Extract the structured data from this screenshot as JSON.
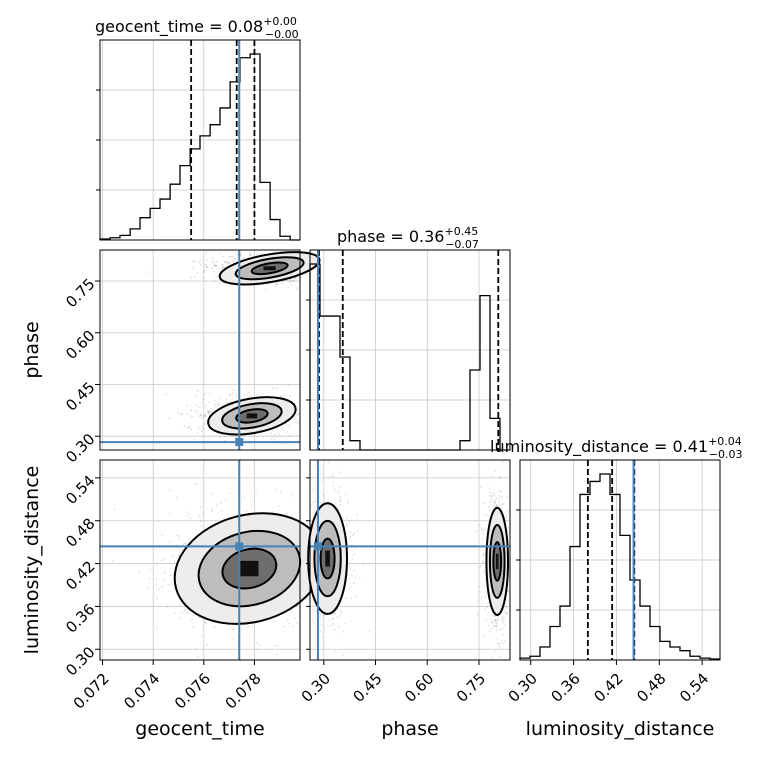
{
  "chart_data": {
    "type": "corner",
    "parameters": [
      "geocent_time",
      "phase",
      "luminosity_distance"
    ],
    "axis_labels": {
      "geocent_time": "geocent_time",
      "phase": "phase",
      "luminosity_distance": "luminosity_distance"
    },
    "ranges": {
      "geocent_time": [
        0.0719,
        0.0798
      ],
      "phase": [
        0.26,
        0.84
      ],
      "luminosity_distance": [
        0.285,
        0.565
      ]
    },
    "ticks": {
      "geocent_time": [
        0.072,
        0.074,
        0.076,
        0.078
      ],
      "phase": [
        0.3,
        0.45,
        0.6,
        0.75
      ],
      "luminosity_distance": [
        0.3,
        0.36,
        0.42,
        0.48,
        0.54
      ]
    },
    "tick_labels": {
      "geocent_time": [
        "0.072",
        "0.074",
        "0.076",
        "0.078"
      ],
      "phase": [
        "0.30",
        "0.45",
        "0.60",
        "0.75"
      ],
      "luminosity_distance": [
        "0.30",
        "0.36",
        "0.42",
        "0.48",
        "0.54"
      ]
    },
    "titles": {
      "geocent_time": {
        "text": "geocent_time = 0.08",
        "plus": "+0.00",
        "minus": "−0.00"
      },
      "phase": {
        "text": "phase = 0.36",
        "plus": "+0.45",
        "minus": "−0.07"
      },
      "luminosity_distance": {
        "text": "luminosity_distance = 0.41",
        "plus": "+0.04",
        "minus": "−0.03"
      }
    },
    "quantiles": {
      "geocent_time": [
        0.0755,
        0.0773,
        0.078
      ],
      "phase": [
        0.286,
        0.355,
        0.806
      ],
      "luminosity_distance": [
        0.38,
        0.414,
        0.445
      ]
    },
    "truths": {
      "geocent_time": 0.0774,
      "phase": 0.283,
      "luminosity_distance": 0.444
    },
    "histograms": {
      "geocent_time": {
        "edges": [
          0.0719,
          0.0723,
          0.07269,
          0.07309,
          0.07348,
          0.07388,
          0.07427,
          0.07467,
          0.07506,
          0.07546,
          0.07585,
          0.07625,
          0.07664,
          0.07704,
          0.07743,
          0.07783,
          0.07822,
          0.07862,
          0.07901,
          0.07941,
          0.0798
        ],
        "values": [
          0.005,
          0.012,
          0.025,
          0.06,
          0.12,
          0.17,
          0.22,
          0.3,
          0.4,
          0.49,
          0.56,
          0.62,
          0.71,
          0.85,
          0.98,
          1.0,
          0.31,
          0.11,
          0.02,
          0.0
        ]
      },
      "phase": {
        "edges": [
          0.26,
          0.289,
          0.318,
          0.347,
          0.376,
          0.405,
          0.434,
          0.463,
          0.492,
          0.521,
          0.55,
          0.579,
          0.608,
          0.637,
          0.666,
          0.695,
          0.724,
          0.753,
          0.782,
          0.811,
          0.84
        ],
        "values": [
          1.0,
          0.72,
          0.72,
          0.5,
          0.05,
          0.0,
          0.0,
          0.0,
          0.0,
          0.0,
          0.0,
          0.0,
          0.0,
          0.0,
          0.0,
          0.05,
          0.43,
          0.83,
          0.17,
          0.0
        ]
      },
      "luminosity_distance": {
        "edges": [
          0.285,
          0.299,
          0.313,
          0.327,
          0.341,
          0.355,
          0.369,
          0.383,
          0.397,
          0.411,
          0.425,
          0.439,
          0.453,
          0.467,
          0.481,
          0.495,
          0.509,
          0.523,
          0.537,
          0.551,
          0.565
        ],
        "values": [
          0.01,
          0.02,
          0.07,
          0.18,
          0.29,
          0.61,
          0.89,
          0.96,
          1.0,
          0.89,
          0.67,
          0.43,
          0.29,
          0.18,
          0.1,
          0.07,
          0.05,
          0.02,
          0.01,
          0.005
        ]
      }
    },
    "contours_2d": {
      "phase_vs_geocent_time": [
        {
          "mode_center": [
            0.0786,
            0.787
          ],
          "mode_width": [
            0.0016,
            0.032
          ]
        },
        {
          "mode_center": [
            0.0779,
            0.359
          ],
          "mode_width": [
            0.0014,
            0.04
          ]
        }
      ],
      "luminosity_distance_vs_geocent_time": [
        {
          "mode_center": [
            0.0778,
            0.413
          ],
          "mode_width": [
            0.0024,
            0.06
          ]
        }
      ],
      "luminosity_distance_vs_phase": [
        {
          "mode_center": [
            0.311,
            0.427
          ],
          "mode_width": [
            0.045,
            0.062
          ]
        },
        {
          "mode_center": [
            0.803,
            0.423
          ],
          "mode_width": [
            0.025,
            0.06
          ]
        }
      ]
    },
    "levels": 3,
    "grid": true,
    "truth_color": "#4682b4",
    "line_color": "#000000"
  }
}
